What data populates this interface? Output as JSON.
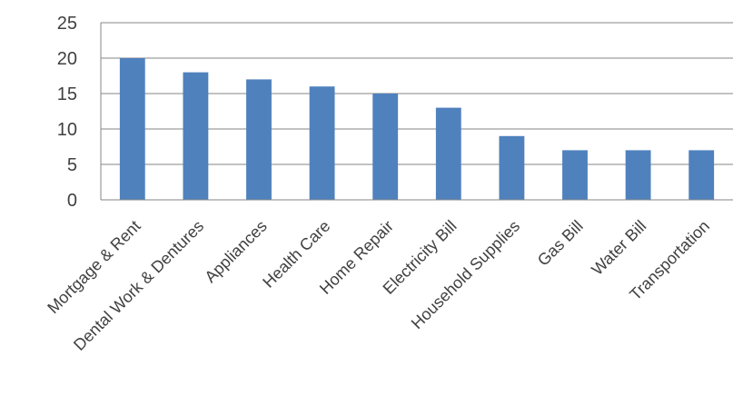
{
  "chart_data": {
    "type": "bar",
    "title": "",
    "xlabel": "",
    "ylabel": "",
    "categories": [
      "Mortgage & Rent",
      "Dental Work & Dentures",
      "Appliances",
      "Health Care",
      "Home Repair",
      "Electricity Bill",
      "Household Supplies",
      "Gas Bill",
      "Water Bill",
      "Transportation"
    ],
    "values": [
      20,
      18,
      17,
      16,
      15,
      13,
      9,
      7,
      7,
      7
    ],
    "ylim": [
      0,
      25
    ],
    "yticks": [
      0,
      5,
      10,
      15,
      20,
      25
    ],
    "grid": true,
    "legend": "none",
    "colors": {
      "bar": "#4f81bd",
      "grid": "#868686",
      "axis": "#868686",
      "text": "#404040"
    }
  }
}
